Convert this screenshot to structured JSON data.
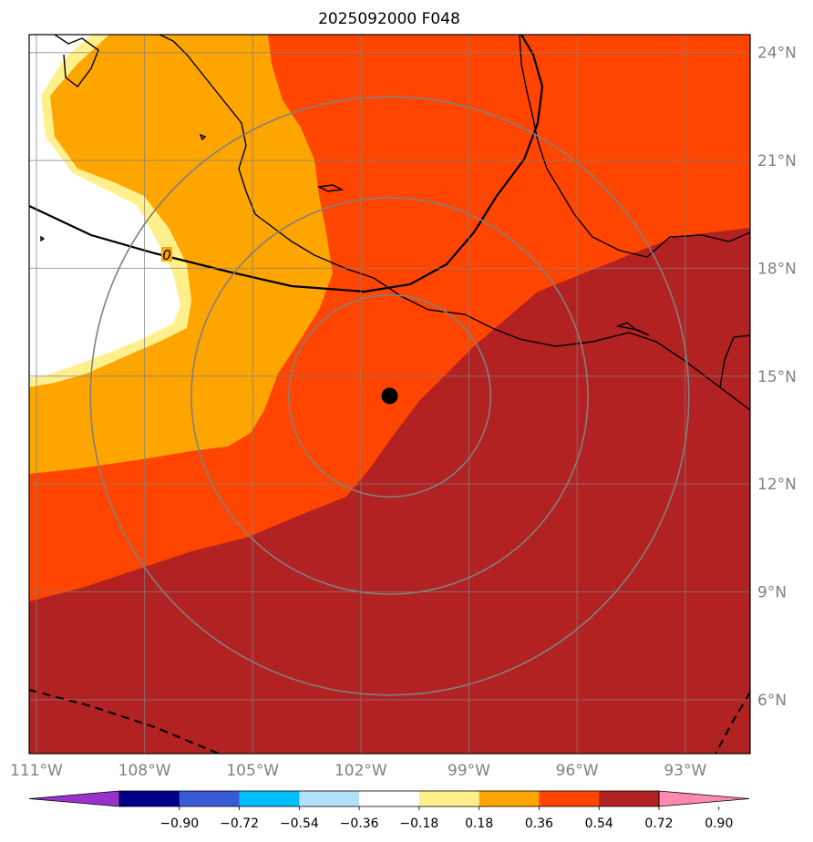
{
  "title": "2025092000 F048",
  "map": {
    "lon_range": [
      -111.2,
      -91.2
    ],
    "lat_range": [
      4.5,
      24.5
    ],
    "lon_ticks": [
      {
        "value": -111,
        "label": "111°W"
      },
      {
        "value": -108,
        "label": "108°W"
      },
      {
        "value": -105,
        "label": "105°W"
      },
      {
        "value": -102,
        "label": "102°W"
      },
      {
        "value": -99,
        "label": "99°W"
      },
      {
        "value": -96,
        "label": "96°W"
      },
      {
        "value": -93,
        "label": "93°W"
      }
    ],
    "lat_ticks": [
      {
        "value": 24,
        "label": "24°N"
      },
      {
        "value": 21,
        "label": "21°N"
      },
      {
        "value": 18,
        "label": "18°N"
      },
      {
        "value": 15,
        "label": "15°N"
      },
      {
        "value": 12,
        "label": "12°N"
      },
      {
        "value": 9,
        "label": "9°N"
      },
      {
        "value": 6,
        "label": "6°N"
      }
    ],
    "storm_center": {
      "lon": -101.2,
      "lat": 14.45
    },
    "range_rings_deg": [
      2.8,
      5.5,
      8.3
    ],
    "contour_label": "0",
    "gridlines": true
  },
  "colorbar": {
    "colors": [
      "#9932cc",
      "#00008b",
      "#3a5bd6",
      "#00bfff",
      "#b3e1fb",
      "#ffffff",
      "#fff08c",
      "#ffa500",
      "#ff4500",
      "#b22222",
      "#ff89b0"
    ],
    "ticks": [
      "−0.90",
      "−0.72",
      "−0.54",
      "−0.36",
      "−0.18",
      "0.18",
      "0.36",
      "0.54",
      "0.72",
      "0.90"
    ]
  }
}
